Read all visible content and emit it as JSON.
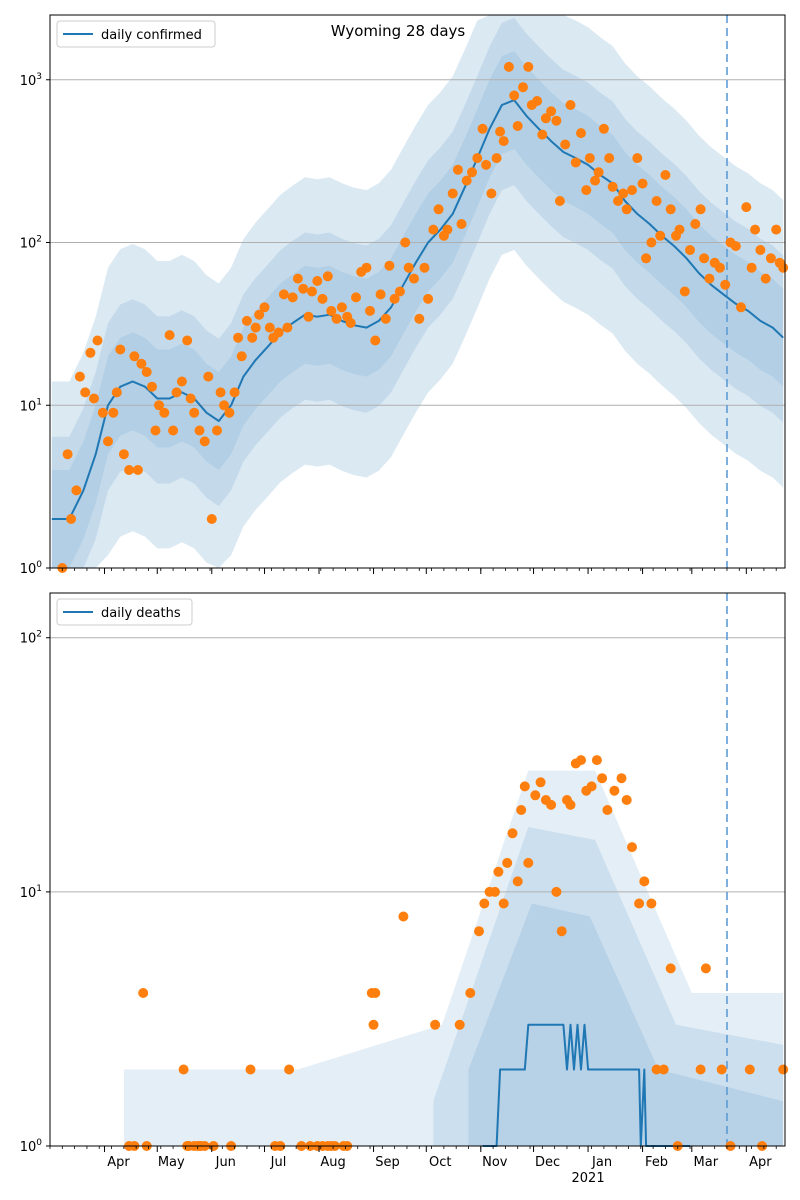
{
  "chart_data": [
    {
      "type": "line",
      "title": "Wyoming 28 days",
      "xlabel": "",
      "ylabel": "",
      "yscale": "log",
      "ylim": [
        1,
        2500
      ],
      "y_ticks": [
        1,
        10,
        100,
        1000
      ],
      "y_tick_labels": [
        "10^0",
        "10^1",
        "10^2",
        "10^3"
      ],
      "grid": "horizontal",
      "legend": {
        "position": "top-left",
        "entries": [
          "daily confirmed"
        ]
      },
      "cutoff_line": "2021-03-21",
      "series": [
        {
          "name": "daily confirmed",
          "kind": "line",
          "color": "#1f77b4",
          "x": [
            "2020-03-02",
            "2020-03-12",
            "2020-03-20",
            "2020-03-27",
            "2020-04-03",
            "2020-04-10",
            "2020-04-17",
            "2020-04-24",
            "2020-05-01",
            "2020-05-08",
            "2020-05-15",
            "2020-05-22",
            "2020-05-29",
            "2020-06-05",
            "2020-06-12",
            "2020-06-19",
            "2020-06-26",
            "2020-07-03",
            "2020-07-10",
            "2020-07-17",
            "2020-07-24",
            "2020-07-31",
            "2020-08-07",
            "2020-08-14",
            "2020-08-21",
            "2020-08-28",
            "2020-09-04",
            "2020-09-11",
            "2020-09-18",
            "2020-09-25",
            "2020-10-02",
            "2020-10-09",
            "2020-10-16",
            "2020-10-23",
            "2020-10-30",
            "2020-11-06",
            "2020-11-13",
            "2020-11-20",
            "2020-11-27",
            "2020-12-04",
            "2020-12-11",
            "2020-12-18",
            "2020-12-25",
            "2021-01-01",
            "2021-01-08",
            "2021-01-15",
            "2021-01-22",
            "2021-01-29",
            "2021-02-05",
            "2021-02-12",
            "2021-02-19",
            "2021-02-26",
            "2021-03-05",
            "2021-03-12",
            "2021-03-19",
            "2021-03-26",
            "2021-04-02",
            "2021-04-09",
            "2021-04-16",
            "2021-04-22"
          ],
          "y": [
            2,
            2,
            3,
            5,
            10,
            13,
            14,
            13,
            11,
            11,
            12,
            11,
            9,
            8,
            10,
            15,
            19,
            23,
            28,
            32,
            36,
            35,
            36,
            33,
            31,
            30,
            33,
            40,
            55,
            75,
            100,
            120,
            150,
            220,
            330,
            500,
            700,
            750,
            600,
            500,
            420,
            360,
            330,
            300,
            260,
            230,
            180,
            150,
            130,
            110,
            95,
            80,
            65,
            55,
            48,
            42,
            38,
            33,
            30,
            26
          ]
        },
        {
          "name": "",
          "kind": "scatter",
          "color": "#ff7f0e",
          "x": [
            "2020-03-08",
            "2020-03-11",
            "2020-03-13",
            "2020-03-16",
            "2020-03-18",
            "2020-03-21",
            "2020-03-24",
            "2020-03-26",
            "2020-03-28",
            "2020-03-31",
            "2020-04-03",
            "2020-04-06",
            "2020-04-08",
            "2020-04-10",
            "2020-04-12",
            "2020-04-15",
            "2020-04-18",
            "2020-04-20",
            "2020-04-22",
            "2020-04-25",
            "2020-04-28",
            "2020-04-30",
            "2020-05-02",
            "2020-05-05",
            "2020-05-08",
            "2020-05-10",
            "2020-05-12",
            "2020-05-15",
            "2020-05-18",
            "2020-05-20",
            "2020-05-22",
            "2020-05-25",
            "2020-05-28",
            "2020-05-30",
            "2020-06-01",
            "2020-06-04",
            "2020-06-06",
            "2020-06-08",
            "2020-06-11",
            "2020-06-14",
            "2020-06-16",
            "2020-06-18",
            "2020-06-21",
            "2020-06-24",
            "2020-06-26",
            "2020-06-28",
            "2020-07-01",
            "2020-07-04",
            "2020-07-06",
            "2020-07-09",
            "2020-07-12",
            "2020-07-14",
            "2020-07-17",
            "2020-07-20",
            "2020-07-23",
            "2020-07-26",
            "2020-07-28",
            "2020-07-31",
            "2020-08-03",
            "2020-08-06",
            "2020-08-08",
            "2020-08-11",
            "2020-08-14",
            "2020-08-17",
            "2020-08-19",
            "2020-08-22",
            "2020-08-25",
            "2020-08-28",
            "2020-08-30",
            "2020-09-02",
            "2020-09-05",
            "2020-09-08",
            "2020-09-10",
            "2020-09-13",
            "2020-09-16",
            "2020-09-19",
            "2020-09-21",
            "2020-09-24",
            "2020-09-27",
            "2020-09-30",
            "2020-10-02",
            "2020-10-05",
            "2020-10-08",
            "2020-10-11",
            "2020-10-13",
            "2020-10-16",
            "2020-10-19",
            "2020-10-21",
            "2020-10-24",
            "2020-10-27",
            "2020-10-30",
            "2020-11-02",
            "2020-11-04",
            "2020-11-07",
            "2020-11-10",
            "2020-11-12",
            "2020-11-14",
            "2020-11-17",
            "2020-11-20",
            "2020-11-22",
            "2020-11-25",
            "2020-11-28",
            "2020-11-30",
            "2020-12-03",
            "2020-12-06",
            "2020-12-08",
            "2020-12-11",
            "2020-12-14",
            "2020-12-16",
            "2020-12-19",
            "2020-12-22",
            "2020-12-25",
            "2020-12-28",
            "2020-12-31",
            "2021-01-02",
            "2021-01-05",
            "2021-01-07",
            "2021-01-10",
            "2021-01-13",
            "2021-01-15",
            "2021-01-18",
            "2021-01-21",
            "2021-01-23",
            "2021-01-26",
            "2021-01-29",
            "2021-02-01",
            "2021-02-03",
            "2021-02-06",
            "2021-02-09",
            "2021-02-11",
            "2021-02-14",
            "2021-02-17",
            "2021-02-20",
            "2021-02-22",
            "2021-02-25",
            "2021-02-28",
            "2021-03-03",
            "2021-03-06",
            "2021-03-08",
            "2021-03-11",
            "2021-03-14",
            "2021-03-17",
            "2021-03-20",
            "2021-03-23",
            "2021-03-26",
            "2021-03-29",
            "2021-04-01",
            "2021-04-04",
            "2021-04-06",
            "2021-04-09",
            "2021-04-12",
            "2021-04-15",
            "2021-04-18",
            "2021-04-20",
            "2021-04-22"
          ],
          "y": [
            1,
            5,
            2,
            3,
            15,
            12,
            21,
            11,
            25,
            9,
            6,
            9,
            12,
            22,
            5,
            4,
            20,
            4,
            18,
            16,
            13,
            7,
            10,
            9,
            27,
            7,
            12,
            14,
            25,
            11,
            9,
            7,
            6,
            15,
            2,
            7,
            12,
            10,
            9,
            12,
            26,
            20,
            33,
            26,
            30,
            36,
            40,
            30,
            26,
            28,
            48,
            30,
            46,
            60,
            52,
            35,
            50,
            58,
            45,
            62,
            38,
            34,
            40,
            35,
            32,
            46,
            66,
            70,
            38,
            25,
            48,
            34,
            72,
            45,
            50,
            100,
            70,
            60,
            34,
            70,
            45,
            120,
            160,
            110,
            120,
            200,
            280,
            130,
            240,
            270,
            330,
            500,
            300,
            200,
            330,
            480,
            420,
            1200,
            800,
            520,
            900,
            1200,
            700,
            740,
            460,
            580,
            640,
            560,
            180,
            400,
            700,
            310,
            470,
            210,
            330,
            240,
            270,
            500,
            330,
            220,
            180,
            200,
            160,
            210,
            330,
            230,
            80,
            100,
            180,
            110,
            260,
            160,
            110,
            120,
            50,
            90,
            130,
            160,
            80,
            60,
            75,
            70,
            55,
            100,
            95,
            40,
            165,
            70,
            120,
            90,
            60,
            80,
            120,
            75,
            70
          ],
          "note_outliers": []
        }
      ]
    },
    {
      "type": "line",
      "title": "",
      "xlabel": "",
      "ylabel": "",
      "yscale": "log",
      "ylim": [
        1,
        150
      ],
      "y_ticks": [
        1,
        10,
        100
      ],
      "y_tick_labels": [
        "10^0",
        "10^1",
        "10^2"
      ],
      "grid": "horizontal",
      "legend": {
        "position": "top-left",
        "entries": [
          "daily deaths"
        ]
      },
      "cutoff_line": "2021-03-21",
      "x_tick_labels": [
        "Apr",
        "May",
        "Jun",
        "Jul",
        "Aug",
        "Sep",
        "Oct",
        "Nov",
        "Dec",
        "Jan",
        "Feb",
        "Mar",
        "Apr"
      ],
      "x_tick_dates": [
        "2020-04-01",
        "2020-05-01",
        "2020-06-01",
        "2020-07-01",
        "2020-08-01",
        "2020-09-01",
        "2020-10-01",
        "2020-11-01",
        "2020-12-01",
        "2021-01-01",
        "2021-02-01",
        "2021-03-01",
        "2021-04-01"
      ],
      "x_year_label": "2021",
      "series": [
        {
          "name": "daily deaths",
          "kind": "line",
          "color": "#1f77b4",
          "x": [
            "2020-11-02",
            "2020-11-10",
            "2020-11-12",
            "2020-11-26",
            "2020-11-28",
            "2020-12-18",
            "2020-12-20",
            "2020-12-22",
            "2020-12-24",
            "2020-12-26",
            "2020-12-28",
            "2020-12-30",
            "2021-01-01",
            "2021-01-30",
            "2021-01-31",
            "2021-02-02",
            "2021-02-03",
            "2021-02-28"
          ],
          "y": [
            1,
            1,
            2,
            2,
            3,
            3,
            2,
            3,
            2,
            3,
            2,
            3,
            2,
            2,
            1,
            2,
            1,
            1
          ]
        },
        {
          "name": "",
          "kind": "scatter",
          "color": "#ff7f0e",
          "x": [
            "2020-04-15",
            "2020-04-18",
            "2020-04-23",
            "2020-04-25",
            "2020-05-16",
            "2020-05-18",
            "2020-05-19",
            "2020-05-22",
            "2020-05-24",
            "2020-05-25",
            "2020-05-26",
            "2020-05-28",
            "2020-06-02",
            "2020-06-12",
            "2020-06-23",
            "2020-07-07",
            "2020-07-10",
            "2020-07-15",
            "2020-07-22",
            "2020-07-27",
            "2020-07-31",
            "2020-08-03",
            "2020-08-06",
            "2020-08-08",
            "2020-08-10",
            "2020-08-15",
            "2020-08-17",
            "2020-08-31",
            "2020-09-01",
            "2020-09-02",
            "2020-09-18",
            "2020-10-06",
            "2020-10-20",
            "2020-10-26",
            "2020-10-31",
            "2020-11-03",
            "2020-11-06",
            "2020-11-09",
            "2020-11-11",
            "2020-11-14",
            "2020-11-16",
            "2020-11-19",
            "2020-11-22",
            "2020-11-24",
            "2020-11-26",
            "2020-11-28",
            "2020-12-02",
            "2020-12-05",
            "2020-12-08",
            "2020-12-11",
            "2020-12-14",
            "2020-12-17",
            "2020-12-20",
            "2020-12-22",
            "2020-12-25",
            "2020-12-28",
            "2020-12-31",
            "2021-01-03",
            "2021-01-06",
            "2021-01-09",
            "2021-01-12",
            "2021-01-16",
            "2021-01-20",
            "2021-01-23",
            "2021-01-26",
            "2021-01-30",
            "2021-02-02",
            "2021-02-06",
            "2021-02-09",
            "2021-02-13",
            "2021-02-17",
            "2021-02-21",
            "2021-03-06",
            "2021-03-09",
            "2021-03-18",
            "2021-03-23",
            "2021-04-03",
            "2021-04-10",
            "2021-04-22"
          ],
          "y": [
            1,
            1,
            4,
            1,
            2,
            1,
            1,
            1,
            1,
            1,
            1,
            1,
            1,
            1,
            2,
            1,
            1,
            2,
            1,
            1,
            1,
            1,
            1,
            1,
            1,
            1,
            1,
            4,
            3,
            4,
            8,
            3,
            3,
            4,
            7,
            9,
            10,
            10,
            12,
            9,
            13,
            17,
            11,
            21,
            26,
            13,
            24,
            27,
            23,
            22,
            10,
            7,
            23,
            22,
            32,
            33,
            25,
            26,
            33,
            28,
            21,
            25,
            28,
            23,
            15,
            9,
            11,
            9,
            2,
            2,
            5,
            1,
            2,
            5,
            2,
            1,
            2,
            1,
            2
          ],
          "note_outliers": []
        }
      ]
    }
  ]
}
